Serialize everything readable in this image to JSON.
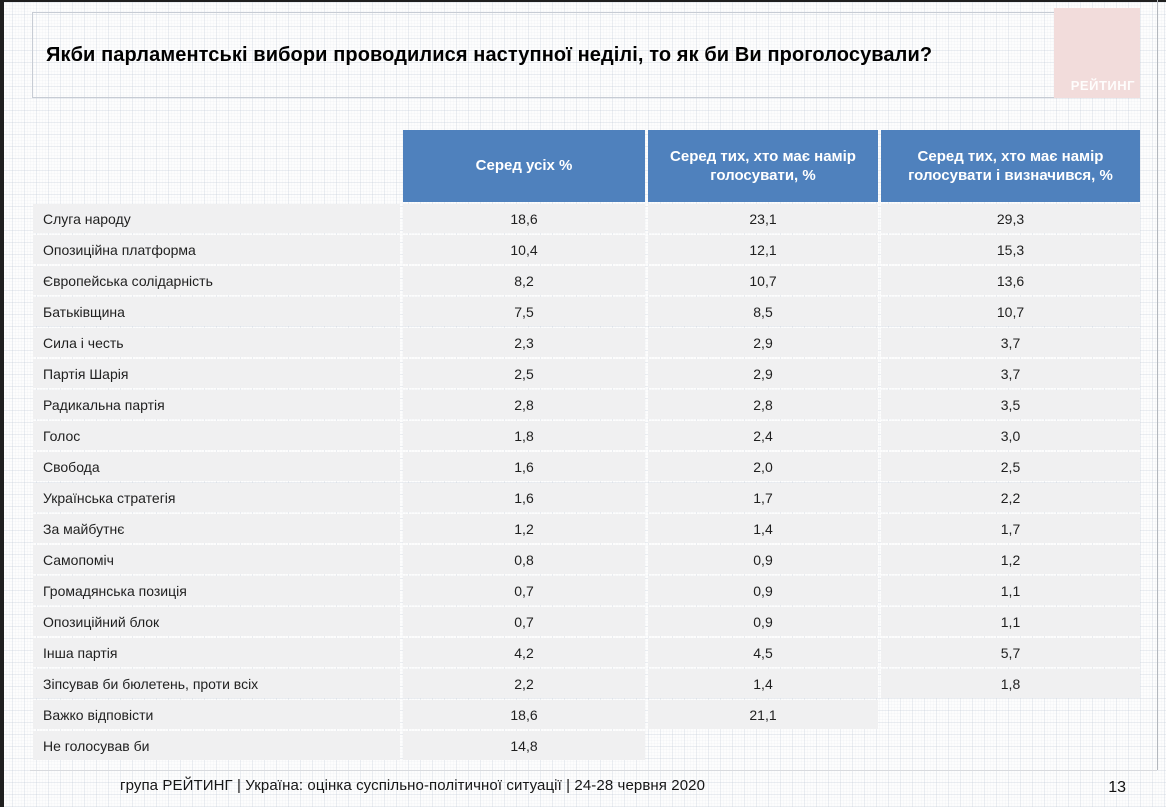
{
  "title": "Якби парламентські вибори проводилися наступної неділі, то як би Ви проголосували?",
  "logo": {
    "text": "РЕЙТИНГ"
  },
  "table": {
    "columns": [
      "Серед усіх %",
      "Серед тих, хто має намір голосувати, %",
      "Серед тих, хто має намір голосувати і визначився, %"
    ],
    "rows": [
      {
        "label": "Слуга народу",
        "values": [
          "18,6",
          "23,1",
          "29,3"
        ]
      },
      {
        "label": "Опозиційна платформа",
        "values": [
          "10,4",
          "12,1",
          "15,3"
        ]
      },
      {
        "label": "Європейська солідарність",
        "values": [
          "8,2",
          "10,7",
          "13,6"
        ]
      },
      {
        "label": "Батьківщина",
        "values": [
          "7,5",
          "8,5",
          "10,7"
        ]
      },
      {
        "label": "Сила і честь",
        "values": [
          "2,3",
          "2,9",
          "3,7"
        ]
      },
      {
        "label": "Партія Шарія",
        "values": [
          "2,5",
          "2,9",
          "3,7"
        ]
      },
      {
        "label": "Радикальна партія",
        "values": [
          "2,8",
          "2,8",
          "3,5"
        ]
      },
      {
        "label": "Голос",
        "values": [
          "1,8",
          "2,4",
          "3,0"
        ]
      },
      {
        "label": "Свобода",
        "values": [
          "1,6",
          "2,0",
          "2,5"
        ]
      },
      {
        "label": "Українська стратегія",
        "values": [
          "1,6",
          "1,7",
          "2,2"
        ]
      },
      {
        "label": "За майбутнє",
        "values": [
          "1,2",
          "1,4",
          "1,7"
        ]
      },
      {
        "label": "Самопоміч",
        "values": [
          "0,8",
          "0,9",
          "1,2"
        ]
      },
      {
        "label": "Громадянська позиція",
        "values": [
          "0,7",
          "0,9",
          "1,1"
        ]
      },
      {
        "label": "Опозиційний блок",
        "values": [
          "0,7",
          "0,9",
          "1,1"
        ]
      },
      {
        "label": "Інша партія",
        "values": [
          "4,2",
          "4,5",
          "5,7"
        ]
      },
      {
        "label": "Зіпсував би бюлетень, проти всіх",
        "values": [
          "2,2",
          "1,4",
          "1,8"
        ]
      },
      {
        "label": "Важко відповісти",
        "values": [
          "18,6",
          "21,1",
          null
        ]
      },
      {
        "label": "Не голосував би",
        "values": [
          "14,8",
          null,
          null
        ]
      }
    ]
  },
  "footer": {
    "text": "група РЕЙТИНГ |  Україна: оцінка суспільно-політичної  ситуації  | 24-28 червня  2020",
    "page": "13"
  },
  "colors": {
    "header_blue": "#4f81bd",
    "row_gray": "#f0f0f1",
    "logo_pink": "#f2dcdb"
  },
  "chart_data": {
    "type": "table",
    "title": "Якби парламентські вибори проводилися наступної неділі, то як би Ви проголосували?",
    "categories": [
      "Слуга народу",
      "Опозиційна платформа",
      "Європейська солідарність",
      "Батьківщина",
      "Сила і честь",
      "Партія Шарія",
      "Радикальна партія",
      "Голос",
      "Свобода",
      "Українська стратегія",
      "За майбутнє",
      "Самопоміч",
      "Громадянська позиція",
      "Опозиційний блок",
      "Інша партія",
      "Зіпсував би бюлетень, проти всіх",
      "Важко відповісти",
      "Не голосував би"
    ],
    "series": [
      {
        "name": "Серед усіх %",
        "values": [
          18.6,
          10.4,
          8.2,
          7.5,
          2.3,
          2.5,
          2.8,
          1.8,
          1.6,
          1.6,
          1.2,
          0.8,
          0.7,
          0.7,
          4.2,
          2.2,
          18.6,
          14.8
        ]
      },
      {
        "name": "Серед тих, хто має намір голосувати, %",
        "values": [
          23.1,
          12.1,
          10.7,
          8.5,
          2.9,
          2.9,
          2.8,
          2.4,
          2.0,
          1.7,
          1.4,
          0.9,
          0.9,
          0.9,
          4.5,
          1.4,
          21.1,
          null
        ]
      },
      {
        "name": "Серед тих, хто має намір голосувати і визначився, %",
        "values": [
          29.3,
          15.3,
          13.6,
          10.7,
          3.7,
          3.7,
          3.5,
          3.0,
          2.5,
          2.2,
          1.7,
          1.2,
          1.1,
          1.1,
          5.7,
          1.8,
          null,
          null
        ]
      }
    ],
    "footer": "група РЕЙТИНГ | Україна: оцінка суспільно-політичної ситуації | 24-28 червня 2020",
    "page": 13
  }
}
